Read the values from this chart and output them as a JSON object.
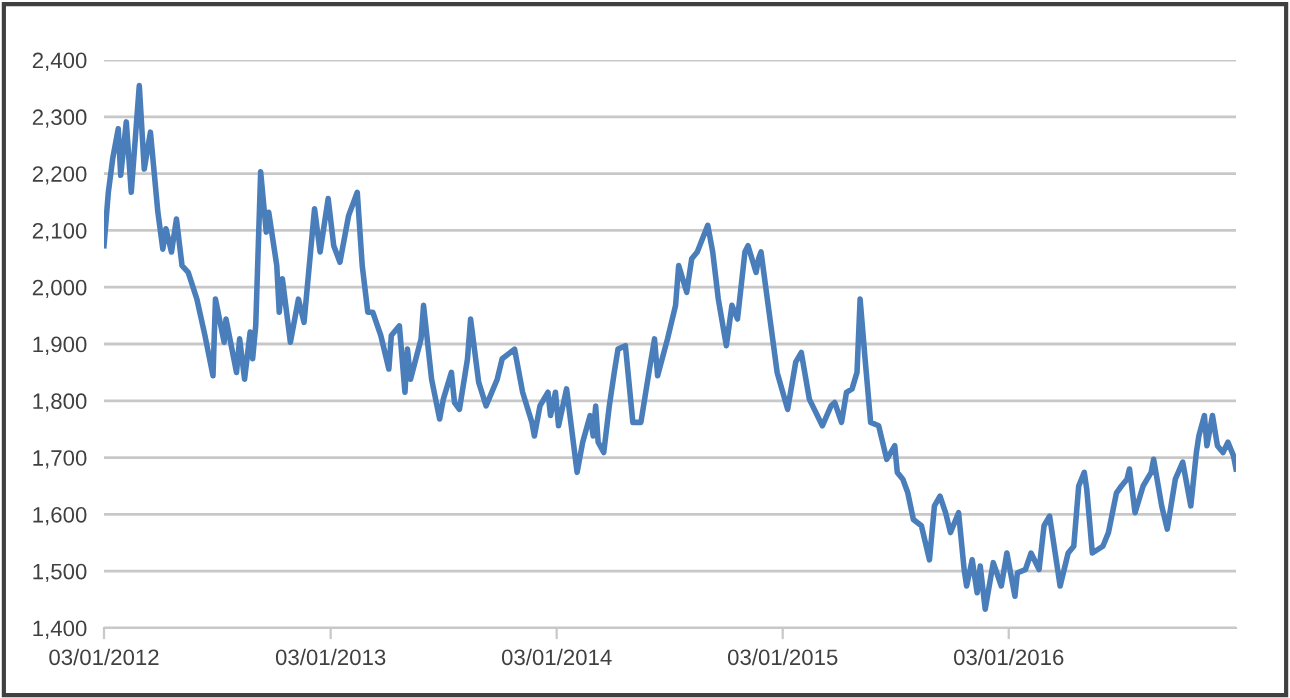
{
  "chart_data": {
    "type": "line",
    "grid": "y",
    "marker": "none",
    "line_style": "solid",
    "xlim": [
      "2012-01-03",
      "2017-01-04"
    ],
    "xticks": [
      {
        "value": "2012-01-03",
        "label": "03/01/2012"
      },
      {
        "value": "2013-01-03",
        "label": "03/01/2013"
      },
      {
        "value": "2014-01-03",
        "label": "03/01/2014"
      },
      {
        "value": "2015-01-03",
        "label": "03/01/2015"
      },
      {
        "value": "2016-01-03",
        "label": "03/01/2016"
      }
    ],
    "ylim": [
      1400,
      2400
    ],
    "yticks": [
      {
        "value": 1400,
        "label": "1,400"
      },
      {
        "value": 1500,
        "label": "1,500"
      },
      {
        "value": 1600,
        "label": "1,600"
      },
      {
        "value": 1700,
        "label": "1,700"
      },
      {
        "value": 1800,
        "label": "1,800"
      },
      {
        "value": 1900,
        "label": "1,900"
      },
      {
        "value": 2000,
        "label": "2,000"
      },
      {
        "value": 2100,
        "label": "2,100"
      },
      {
        "value": 2200,
        "label": "2,200"
      },
      {
        "value": 2300,
        "label": "2,300"
      },
      {
        "value": 2400,
        "label": "2,400"
      }
    ],
    "x": [
      "2012-01-03",
      "2012-01-10",
      "2012-01-17",
      "2012-01-26",
      "2012-01-30",
      "2012-02-08",
      "2012-02-16",
      "2012-02-29",
      "2012-03-08",
      "2012-03-18",
      "2012-03-30",
      "2012-04-07",
      "2012-04-12",
      "2012-04-21",
      "2012-04-29",
      "2012-05-08",
      "2012-05-18",
      "2012-06-01",
      "2012-06-14",
      "2012-06-27",
      "2012-07-01",
      "2012-07-15",
      "2012-07-18",
      "2012-08-04",
      "2012-08-09",
      "2012-08-17",
      "2012-08-26",
      "2012-08-30",
      "2012-09-04",
      "2012-09-12",
      "2012-09-21",
      "2012-09-25",
      "2012-10-08",
      "2012-10-12",
      "2012-10-17",
      "2012-10-30",
      "2012-11-12",
      "2012-11-21",
      "2012-12-08",
      "2012-12-17",
      "2012-12-30",
      "2013-01-08",
      "2013-01-18",
      "2013-02-01",
      "2013-02-15",
      "2013-02-23",
      "2013-03-04",
      "2013-03-12",
      "2013-03-25",
      "2013-04-07",
      "2013-04-11",
      "2013-04-24",
      "2013-05-03",
      "2013-05-07",
      "2013-05-12",
      "2013-05-29",
      "2013-06-02",
      "2013-06-15",
      "2013-06-28",
      "2013-07-04",
      "2013-07-17",
      "2013-07-22",
      "2013-07-30",
      "2013-08-12",
      "2013-08-17",
      "2013-08-30",
      "2013-09-11",
      "2013-09-29",
      "2013-10-07",
      "2013-10-27",
      "2013-11-09",
      "2013-11-24",
      "2013-11-28",
      "2013-12-07",
      "2013-12-20",
      "2013-12-24",
      "2014-01-01",
      "2014-01-06",
      "2014-01-19",
      "2014-02-05",
      "2014-02-14",
      "2014-02-26",
      "2014-03-03",
      "2014-03-07",
      "2014-03-11",
      "2014-03-20",
      "2014-03-29",
      "2014-04-06",
      "2014-04-12",
      "2014-04-24",
      "2014-05-06",
      "2014-05-19",
      "2014-06-01",
      "2014-06-10",
      "2014-06-15",
      "2014-07-01",
      "2014-07-14",
      "2014-07-19",
      "2014-08-01",
      "2014-08-09",
      "2014-08-18",
      "2014-09-04",
      "2014-09-12",
      "2014-09-21",
      "2014-10-04",
      "2014-10-13",
      "2014-10-22",
      "2014-11-03",
      "2014-11-08",
      "2014-11-21",
      "2014-11-25",
      "2014-11-29",
      "2014-12-12",
      "2014-12-25",
      "2015-01-11",
      "2015-01-24",
      "2015-02-02",
      "2015-02-15",
      "2015-03-08",
      "2015-03-22",
      "2015-03-28",
      "2015-04-08",
      "2015-04-16",
      "2015-04-25",
      "2015-05-03",
      "2015-05-08",
      "2015-05-16",
      "2015-05-25",
      "2015-06-07",
      "2015-06-20",
      "2015-07-03",
      "2015-07-07",
      "2015-07-16",
      "2015-07-24",
      "2015-08-02",
      "2015-08-15",
      "2015-08-28",
      "2015-09-05",
      "2015-09-14",
      "2015-09-23",
      "2015-10-01",
      "2015-10-14",
      "2015-10-23",
      "2015-10-27",
      "2015-11-05",
      "2015-11-13",
      "2015-11-18",
      "2015-11-26",
      "2015-12-09",
      "2015-12-22",
      "2015-12-31",
      "2016-01-13",
      "2016-01-17",
      "2016-01-30",
      "2016-02-08",
      "2016-02-21",
      "2016-02-29",
      "2016-03-09",
      "2016-03-26",
      "2016-04-08",
      "2016-04-17",
      "2016-04-25",
      "2016-05-04",
      "2016-05-08",
      "2016-05-17",
      "2016-06-03",
      "2016-06-12",
      "2016-06-25",
      "2016-07-03",
      "2016-07-12",
      "2016-07-16",
      "2016-07-25",
      "2016-08-07",
      "2016-08-20",
      "2016-08-24",
      "2016-09-06",
      "2016-09-15",
      "2016-09-28",
      "2016-10-10",
      "2016-10-23",
      "2016-11-01",
      "2016-11-05",
      "2016-11-14",
      "2016-11-18",
      "2016-11-27",
      "2016-12-05",
      "2016-12-14",
      "2016-12-22",
      "2016-12-31",
      "2017-01-04"
    ],
    "series": [
      {
        "color": "#4a7ebb",
        "values": [
          2073,
          2167,
          2226,
          2279,
          2197,
          2291,
          2167,
          2355,
          2208,
          2273,
          2132,
          2067,
          2103,
          2062,
          2120,
          2038,
          2026,
          1979,
          1915,
          1844,
          1979,
          1903,
          1944,
          1850,
          1909,
          1838,
          1921,
          1874,
          1932,
          2203,
          2097,
          2132,
          2038,
          1956,
          2015,
          1903,
          1979,
          1938,
          2138,
          2062,
          2156,
          2073,
          2044,
          2126,
          2167,
          2038,
          1956,
          1956,
          1915,
          1856,
          1915,
          1932,
          1815,
          1891,
          1838,
          1909,
          1968,
          1838,
          1768,
          1803,
          1850,
          1797,
          1785,
          1874,
          1944,
          1833,
          1791,
          1838,
          1874,
          1891,
          1815,
          1762,
          1738,
          1791,
          1815,
          1774,
          1815,
          1756,
          1821,
          1674,
          1727,
          1774,
          1738,
          1791,
          1727,
          1709,
          1791,
          1850,
          1891,
          1897,
          1762,
          1762,
          1850,
          1909,
          1844,
          1909,
          1968,
          2038,
          1991,
          2050,
          2062,
          2109,
          2062,
          1979,
          1897,
          1968,
          1944,
          2062,
          2073,
          2026,
          2050,
          2062,
          1956,
          1850,
          1785,
          1868,
          1885,
          1803,
          1756,
          1791,
          1797,
          1762,
          1815,
          1821,
          1850,
          1979,
          1874,
          1762,
          1756,
          1697,
          1721,
          1674,
          1662,
          1638,
          1591,
          1580,
          1520,
          1615,
          1632,
          1603,
          1568,
          1603,
          1503,
          1474,
          1520,
          1462,
          1509,
          1433,
          1515,
          1474,
          1532,
          1456,
          1497,
          1503,
          1532,
          1503,
          1580,
          1597,
          1474,
          1532,
          1544,
          1650,
          1674,
          1644,
          1532,
          1544,
          1568,
          1638,
          1650,
          1662,
          1680,
          1603,
          1650,
          1674,
          1697,
          1615,
          1574,
          1662,
          1692,
          1615,
          1709,
          1738,
          1774,
          1721,
          1774,
          1721,
          1709,
          1727,
          1703,
          1680
        ]
      }
    ]
  }
}
